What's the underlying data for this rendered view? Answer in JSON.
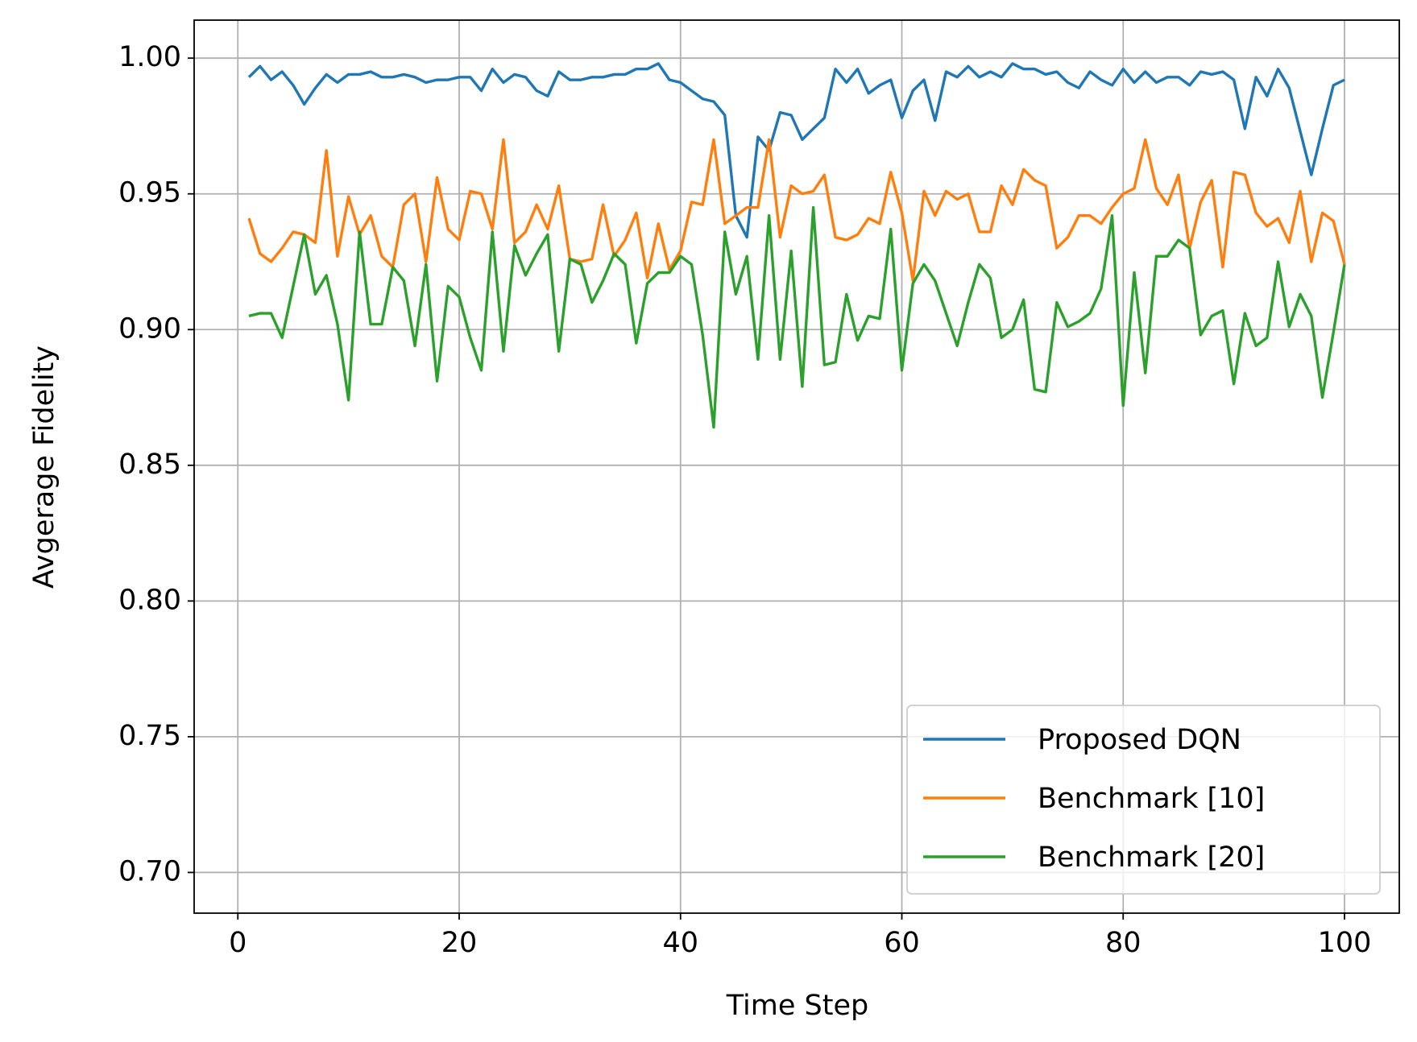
{
  "chart_data": {
    "type": "line",
    "xlabel": "Time Step",
    "ylabel": "Avgerage Fidelity",
    "x": [
      1,
      2,
      3,
      4,
      5,
      6,
      7,
      8,
      9,
      10,
      11,
      12,
      13,
      14,
      15,
      16,
      17,
      18,
      19,
      20,
      21,
      22,
      23,
      24,
      25,
      26,
      27,
      28,
      29,
      30,
      31,
      32,
      33,
      34,
      35,
      36,
      37,
      38,
      39,
      40,
      41,
      42,
      43,
      44,
      45,
      46,
      47,
      48,
      49,
      50,
      51,
      52,
      53,
      54,
      55,
      56,
      57,
      58,
      59,
      60,
      61,
      62,
      63,
      64,
      65,
      66,
      67,
      68,
      69,
      70,
      71,
      72,
      73,
      74,
      75,
      76,
      77,
      78,
      79,
      80,
      81,
      82,
      83,
      84,
      85,
      86,
      87,
      88,
      89,
      90,
      91,
      92,
      93,
      94,
      95,
      96,
      97,
      98,
      99,
      100
    ],
    "series": [
      {
        "name": "Proposed DQN",
        "color": "#1f77b4",
        "values": [
          0.993,
          0.997,
          0.992,
          0.995,
          0.99,
          0.983,
          0.989,
          0.994,
          0.991,
          0.994,
          0.994,
          0.995,
          0.993,
          0.993,
          0.994,
          0.993,
          0.991,
          0.992,
          0.992,
          0.993,
          0.993,
          0.988,
          0.996,
          0.991,
          0.994,
          0.993,
          0.988,
          0.986,
          0.995,
          0.992,
          0.992,
          0.993,
          0.993,
          0.994,
          0.994,
          0.996,
          0.996,
          0.998,
          0.992,
          0.991,
          0.988,
          0.985,
          0.984,
          0.979,
          0.942,
          0.934,
          0.971,
          0.966,
          0.98,
          0.979,
          0.97,
          0.974,
          0.978,
          0.996,
          0.991,
          0.996,
          0.987,
          0.99,
          0.992,
          0.978,
          0.988,
          0.992,
          0.977,
          0.995,
          0.993,
          0.997,
          0.993,
          0.995,
          0.993,
          0.998,
          0.996,
          0.996,
          0.994,
          0.995,
          0.991,
          0.989,
          0.995,
          0.992,
          0.99,
          0.996,
          0.991,
          0.995,
          0.991,
          0.993,
          0.993,
          0.99,
          0.995,
          0.994,
          0.995,
          0.992,
          0.974,
          0.993,
          0.986,
          0.996,
          0.989,
          0.973,
          0.957,
          0.974,
          0.99,
          0.992
        ]
      },
      {
        "name": "Benchmark [10]",
        "color": "#ff7f0e",
        "values": [
          0.941,
          0.928,
          0.925,
          0.93,
          0.936,
          0.935,
          0.932,
          0.966,
          0.927,
          0.949,
          0.935,
          0.942,
          0.927,
          0.923,
          0.946,
          0.95,
          0.925,
          0.956,
          0.937,
          0.933,
          0.951,
          0.95,
          0.937,
          0.97,
          0.932,
          0.936,
          0.946,
          0.937,
          0.953,
          0.926,
          0.925,
          0.926,
          0.946,
          0.927,
          0.933,
          0.943,
          0.919,
          0.939,
          0.922,
          0.929,
          0.947,
          0.946,
          0.97,
          0.939,
          0.942,
          0.945,
          0.945,
          0.97,
          0.934,
          0.953,
          0.95,
          0.951,
          0.957,
          0.934,
          0.933,
          0.935,
          0.941,
          0.939,
          0.958,
          0.943,
          0.918,
          0.951,
          0.942,
          0.951,
          0.948,
          0.95,
          0.936,
          0.936,
          0.953,
          0.946,
          0.959,
          0.955,
          0.953,
          0.93,
          0.934,
          0.942,
          0.942,
          0.939,
          0.945,
          0.95,
          0.952,
          0.97,
          0.952,
          0.946,
          0.957,
          0.93,
          0.947,
          0.955,
          0.923,
          0.958,
          0.957,
          0.943,
          0.938,
          0.941,
          0.932,
          0.951,
          0.925,
          0.943,
          0.94,
          0.924
        ]
      },
      {
        "name": "Benchmark [20]",
        "color": "#2ca02c",
        "values": [
          0.905,
          0.906,
          0.906,
          0.897,
          0.916,
          0.935,
          0.913,
          0.92,
          0.902,
          0.874,
          0.936,
          0.902,
          0.902,
          0.923,
          0.918,
          0.894,
          0.924,
          0.881,
          0.916,
          0.912,
          0.897,
          0.885,
          0.936,
          0.892,
          0.931,
          0.92,
          0.928,
          0.935,
          0.892,
          0.926,
          0.924,
          0.91,
          0.918,
          0.928,
          0.924,
          0.895,
          0.917,
          0.921,
          0.921,
          0.927,
          0.924,
          0.898,
          0.864,
          0.936,
          0.913,
          0.927,
          0.889,
          0.942,
          0.889,
          0.929,
          0.879,
          0.945,
          0.887,
          0.888,
          0.913,
          0.896,
          0.905,
          0.904,
          0.937,
          0.885,
          0.917,
          0.924,
          0.918,
          0.906,
          0.894,
          0.91,
          0.924,
          0.919,
          0.897,
          0.9,
          0.911,
          0.878,
          0.877,
          0.91,
          0.901,
          0.903,
          0.906,
          0.915,
          0.942,
          0.872,
          0.921,
          0.884,
          0.927,
          0.927,
          0.933,
          0.93,
          0.898,
          0.905,
          0.907,
          0.88,
          0.906,
          0.894,
          0.897,
          0.925,
          0.901,
          0.913,
          0.905,
          0.875,
          0.899,
          0.924
        ]
      }
    ],
    "xlim": [
      -3.95,
      104.95
    ],
    "xticks": [
      0,
      20,
      40,
      60,
      80,
      100
    ],
    "ylim": [
      0.685,
      1.014
    ],
    "yticks": [
      {
        "value": 0.7,
        "label": "0.70"
      },
      {
        "value": 0.75,
        "label": "0.75"
      },
      {
        "value": 0.8,
        "label": "0.80"
      },
      {
        "value": 0.85,
        "label": "0.85"
      },
      {
        "value": 0.9,
        "label": "0.90"
      },
      {
        "value": 0.95,
        "label": "0.95"
      },
      {
        "value": 1.0,
        "label": "1.00"
      }
    ],
    "grid": true,
    "legend": "lower right"
  }
}
